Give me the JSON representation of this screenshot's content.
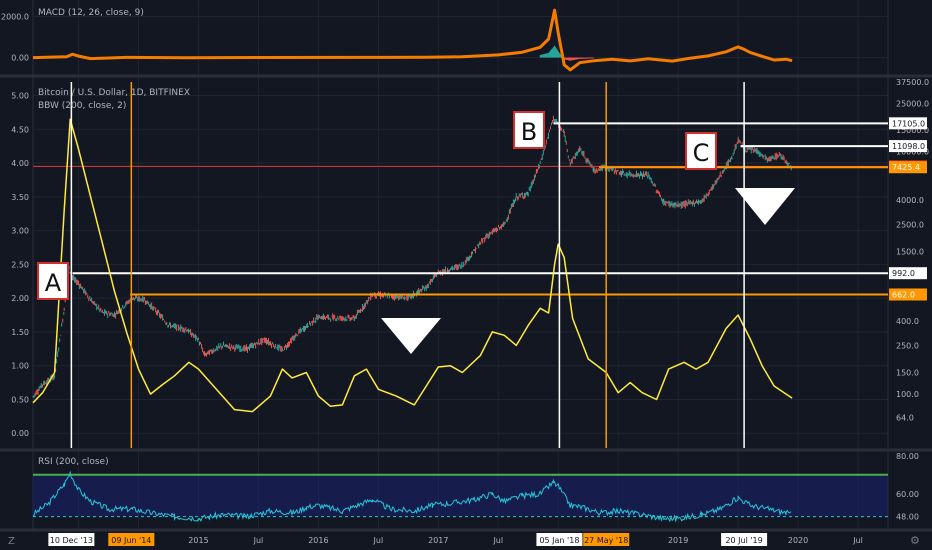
{
  "colors": {
    "background": "#131722",
    "grid": "#1f2433",
    "separator": "#2a2e39",
    "text": "#b2b5be",
    "macd": "#f57c00",
    "macd_hist_up": "#26a69a",
    "macd_hist_down": "#ef5350",
    "bbw": "#ffeb3b",
    "candle_up": "#26a69a",
    "candle_down": "#ef5350",
    "white_level": "#ffffff",
    "orange_level": "#ff9800",
    "red_level": "#e53935",
    "rsi": "#26c6da",
    "rsi_band": "#1a237e",
    "rsi_upper": "#4caf50"
  },
  "macd_panel": {
    "title": "MACD (12, 26, close, 9)",
    "y_ticks": [
      "2000.0",
      "0.00"
    ]
  },
  "main_panel": {
    "title": "Bitcoin / U.S. Dollar, 1D, BITFINEX",
    "subtitle": "BBW (200, close, 2)"
  },
  "rsi_panel": {
    "title": "RSI (200, close)",
    "y_ticks": [
      "80.00",
      "60.00",
      "48.00"
    ]
  },
  "annotations": [
    {
      "key": "A",
      "text": "A"
    },
    {
      "key": "B",
      "text": "B"
    },
    {
      "key": "C",
      "text": "C"
    }
  ],
  "time_axis": {
    "labels": [
      "2015",
      "Jul",
      "2016",
      "Jul",
      "2017",
      "Jul",
      "2019",
      "Jul",
      "2020",
      "Jul"
    ],
    "highlighted": [
      {
        "text": "10 Dec '13",
        "style": "white"
      },
      {
        "text": "09 Jun '14",
        "style": "orange"
      },
      {
        "text": "05 Jan '18",
        "style": "white"
      },
      {
        "text": "27 May '18",
        "style": "orange"
      },
      {
        "text": "20 Jul '19",
        "style": "white"
      }
    ],
    "corner": "Z"
  },
  "chart_data": [
    {
      "type": "line",
      "name": "MACD (12, 26, close, 9)",
      "x_range": [
        2013.62,
        2020.75
      ],
      "ylim": [
        -700,
        2600
      ],
      "ticks": [
        2000,
        0
      ],
      "series": [
        {
          "name": "MACD",
          "points": [
            [
              2013.62,
              0
            ],
            [
              2013.9,
              40
            ],
            [
              2013.95,
              160
            ],
            [
              2014.0,
              70
            ],
            [
              2014.1,
              -50
            ],
            [
              2014.4,
              10
            ],
            [
              2014.9,
              -10
            ],
            [
              2015.5,
              5
            ],
            [
              2016.4,
              10
            ],
            [
              2016.9,
              20
            ],
            [
              2017.2,
              40
            ],
            [
              2017.5,
              130
            ],
            [
              2017.7,
              260
            ],
            [
              2017.85,
              500
            ],
            [
              2017.92,
              900
            ],
            [
              2017.97,
              2300
            ],
            [
              2018.0,
              1200
            ],
            [
              2018.05,
              -350
            ],
            [
              2018.1,
              -600
            ],
            [
              2018.18,
              -250
            ],
            [
              2018.3,
              -150
            ],
            [
              2018.45,
              -80
            ],
            [
              2018.6,
              -160
            ],
            [
              2018.75,
              -60
            ],
            [
              2018.95,
              -170
            ],
            [
              2019.1,
              -30
            ],
            [
              2019.25,
              80
            ],
            [
              2019.4,
              280
            ],
            [
              2019.5,
              520
            ],
            [
              2019.55,
              400
            ],
            [
              2019.6,
              250
            ],
            [
              2019.7,
              60
            ],
            [
              2019.8,
              -120
            ],
            [
              2019.9,
              -80
            ],
            [
              2019.95,
              -150
            ]
          ]
        }
      ]
    },
    {
      "type": "line",
      "name": "Bitcoin / U.S. Dollar, 1D, BITFINEX",
      "x_range": [
        2013.62,
        2020.75
      ],
      "y_scale": "log",
      "ylim_price": [
        45,
        37500
      ],
      "price_ticks": [
        37500,
        25000,
        15000,
        10000,
        4000,
        2500,
        1500,
        1000,
        400,
        250,
        150,
        100,
        64
      ],
      "price_tick_labels": [
        "37500.0",
        "25000.0",
        "15000.0",
        "10000.0",
        "4000.0",
        "2500.0",
        "1500.0",
        "1000.0",
        "400.0",
        "250.0",
        "150.0",
        "100.0",
        "64.0"
      ],
      "levels": [
        {
          "price": 17105,
          "label": "17105.0",
          "style": "white",
          "from": 2017.96
        },
        {
          "price": 11098,
          "label": "11098.0",
          "style": "white",
          "from": 2019.52
        },
        {
          "price": 7544.3,
          "label": "7544.3",
          "style": "red",
          "from": 2013.62
        },
        {
          "price": 7425.4,
          "label": "7425.4",
          "style": "orange",
          "from": 2018.34
        },
        {
          "price": 992,
          "label": "992.0",
          "style": "white",
          "from": 2013.95
        },
        {
          "price": 662,
          "label": "662.0",
          "style": "orange",
          "from": 2014.43
        }
      ],
      "vertical_markers": [
        {
          "x": 2013.94,
          "label": "10 Dec '13",
          "style": "white"
        },
        {
          "x": 2014.44,
          "label": "09 Jun '14",
          "style": "orange"
        },
        {
          "x": 2018.01,
          "label": "05 Jan '18",
          "style": "white"
        },
        {
          "x": 2018.4,
          "label": "27 May '18",
          "style": "orange"
        },
        {
          "x": 2019.55,
          "label": "20 Jul '19",
          "style": "white"
        }
      ],
      "series": [
        {
          "name": "BTCUSD",
          "points": [
            [
              2013.62,
              95
            ],
            [
              2013.7,
              120
            ],
            [
              2013.8,
              140
            ],
            [
              2013.88,
              500
            ],
            [
              2013.92,
              1100
            ],
            [
              2013.95,
              900
            ],
            [
              2014.0,
              820
            ],
            [
              2014.1,
              600
            ],
            [
              2014.2,
              470
            ],
            [
              2014.3,
              450
            ],
            [
              2014.45,
              620
            ],
            [
              2014.55,
              600
            ],
            [
              2014.65,
              480
            ],
            [
              2014.75,
              370
            ],
            [
              2014.9,
              340
            ],
            [
              2015.0,
              280
            ],
            [
              2015.05,
              210
            ],
            [
              2015.2,
              250
            ],
            [
              2015.4,
              235
            ],
            [
              2015.55,
              280
            ],
            [
              2015.7,
              230
            ],
            [
              2015.85,
              330
            ],
            [
              2016.0,
              430
            ],
            [
              2016.3,
              420
            ],
            [
              2016.45,
              660
            ],
            [
              2016.55,
              650
            ],
            [
              2016.75,
              620
            ],
            [
              2016.9,
              760
            ],
            [
              2017.0,
              1000
            ],
            [
              2017.2,
              1150
            ],
            [
              2017.4,
              2000
            ],
            [
              2017.55,
              2500
            ],
            [
              2017.65,
              4200
            ],
            [
              2017.75,
              4500
            ],
            [
              2017.85,
              8000
            ],
            [
              2017.96,
              19000
            ],
            [
              2018.05,
              14000
            ],
            [
              2018.1,
              8000
            ],
            [
              2018.18,
              10500
            ],
            [
              2018.3,
              7000
            ],
            [
              2018.4,
              7500
            ],
            [
              2018.55,
              6500
            ],
            [
              2018.75,
              6400
            ],
            [
              2018.88,
              3800
            ],
            [
              2019.0,
              3600
            ],
            [
              2019.2,
              3900
            ],
            [
              2019.3,
              5300
            ],
            [
              2019.45,
              9000
            ],
            [
              2019.5,
              12500
            ],
            [
              2019.55,
              10500
            ],
            [
              2019.65,
              10200
            ],
            [
              2019.75,
              8500
            ],
            [
              2019.85,
              9400
            ],
            [
              2019.95,
              7400
            ]
          ]
        }
      ]
    },
    {
      "type": "line",
      "name": "BBW (200, close, 2)",
      "x_range": [
        2013.62,
        2020.75
      ],
      "ylim": [
        -0.1,
        5.2
      ],
      "ticks": [
        5.0,
        4.5,
        4.0,
        3.5,
        3.0,
        2.5,
        2.0,
        1.5,
        1.0,
        0.5,
        0.0
      ],
      "tick_labels": [
        "5.00",
        "4.50",
        "4.00",
        "3.50",
        "3.00",
        "2.50",
        "2.00",
        "1.50",
        "1.00",
        "0.50",
        "0.00"
      ],
      "series": [
        {
          "name": "BBW",
          "points": [
            [
              2013.62,
              0.45
            ],
            [
              2013.7,
              0.6
            ],
            [
              2013.8,
              0.9
            ],
            [
              2013.88,
              3.3
            ],
            [
              2013.93,
              4.65
            ],
            [
              2014.0,
              4.2
            ],
            [
              2014.1,
              3.5
            ],
            [
              2014.2,
              2.8
            ],
            [
              2014.3,
              2.1
            ],
            [
              2014.4,
              1.5
            ],
            [
              2014.5,
              0.95
            ],
            [
              2014.6,
              0.58
            ],
            [
              2014.7,
              0.72
            ],
            [
              2014.8,
              0.85
            ],
            [
              2014.92,
              1.05
            ],
            [
              2015.0,
              0.95
            ],
            [
              2015.1,
              0.75
            ],
            [
              2015.2,
              0.55
            ],
            [
              2015.3,
              0.35
            ],
            [
              2015.45,
              0.32
            ],
            [
              2015.6,
              0.55
            ],
            [
              2015.7,
              0.95
            ],
            [
              2015.78,
              0.82
            ],
            [
              2015.9,
              0.9
            ],
            [
              2016.0,
              0.55
            ],
            [
              2016.1,
              0.4
            ],
            [
              2016.2,
              0.42
            ],
            [
              2016.3,
              0.85
            ],
            [
              2016.4,
              0.95
            ],
            [
              2016.5,
              0.65
            ],
            [
              2016.65,
              0.55
            ],
            [
              2016.8,
              0.42
            ],
            [
              2016.9,
              0.7
            ],
            [
              2017.0,
              0.98
            ],
            [
              2017.1,
              1.0
            ],
            [
              2017.2,
              0.9
            ],
            [
              2017.35,
              1.15
            ],
            [
              2017.45,
              1.5
            ],
            [
              2017.55,
              1.45
            ],
            [
              2017.65,
              1.3
            ],
            [
              2017.75,
              1.6
            ],
            [
              2017.85,
              1.85
            ],
            [
              2017.92,
              1.78
            ],
            [
              2017.97,
              2.5
            ],
            [
              2018.0,
              2.8
            ],
            [
              2018.05,
              2.6
            ],
            [
              2018.12,
              1.7
            ],
            [
              2018.25,
              1.1
            ],
            [
              2018.4,
              0.9
            ],
            [
              2018.5,
              0.6
            ],
            [
              2018.6,
              0.75
            ],
            [
              2018.7,
              0.6
            ],
            [
              2018.82,
              0.5
            ],
            [
              2018.92,
              0.95
            ],
            [
              2019.05,
              1.05
            ],
            [
              2019.15,
              0.95
            ],
            [
              2019.25,
              1.05
            ],
            [
              2019.4,
              1.55
            ],
            [
              2019.5,
              1.75
            ],
            [
              2019.6,
              1.4
            ],
            [
              2019.7,
              1.0
            ],
            [
              2019.8,
              0.7
            ],
            [
              2019.95,
              0.52
            ]
          ]
        }
      ]
    },
    {
      "type": "line",
      "name": "RSI (200, close)",
      "x_range": [
        2013.62,
        2020.75
      ],
      "ylim": [
        42,
        82
      ],
      "ticks": [
        80,
        60,
        48
      ],
      "bands": [
        {
          "from": 48,
          "to": 70
        }
      ],
      "upper_line": 70,
      "series": [
        {
          "name": "RSI",
          "points": [
            [
              2013.62,
              49
            ],
            [
              2013.75,
              55
            ],
            [
              2013.88,
              65
            ],
            [
              2013.93,
              71
            ],
            [
              2014.0,
              62
            ],
            [
              2014.1,
              56
            ],
            [
              2014.25,
              52
            ],
            [
              2014.45,
              52
            ],
            [
              2014.6,
              50
            ],
            [
              2014.8,
              48
            ],
            [
              2015.0,
              47
            ],
            [
              2015.2,
              49
            ],
            [
              2015.4,
              48
            ],
            [
              2015.6,
              51
            ],
            [
              2015.8,
              50
            ],
            [
              2015.9,
              53
            ],
            [
              2016.0,
              54
            ],
            [
              2016.2,
              51
            ],
            [
              2016.45,
              57
            ],
            [
              2016.6,
              52
            ],
            [
              2016.8,
              51
            ],
            [
              2016.95,
              54
            ],
            [
              2017.1,
              55
            ],
            [
              2017.3,
              57
            ],
            [
              2017.45,
              60
            ],
            [
              2017.55,
              56
            ],
            [
              2017.7,
              59
            ],
            [
              2017.85,
              60
            ],
            [
              2017.96,
              66
            ],
            [
              2018.0,
              64
            ],
            [
              2018.1,
              54
            ],
            [
              2018.2,
              53
            ],
            [
              2018.35,
              50
            ],
            [
              2018.5,
              51
            ],
            [
              2018.7,
              49
            ],
            [
              2018.88,
              47
            ],
            [
              2019.0,
              47
            ],
            [
              2019.2,
              49
            ],
            [
              2019.35,
              52
            ],
            [
              2019.5,
              58
            ],
            [
              2019.6,
              54
            ],
            [
              2019.75,
              52
            ],
            [
              2019.9,
              50
            ],
            [
              2019.95,
              49
            ]
          ]
        }
      ]
    }
  ]
}
